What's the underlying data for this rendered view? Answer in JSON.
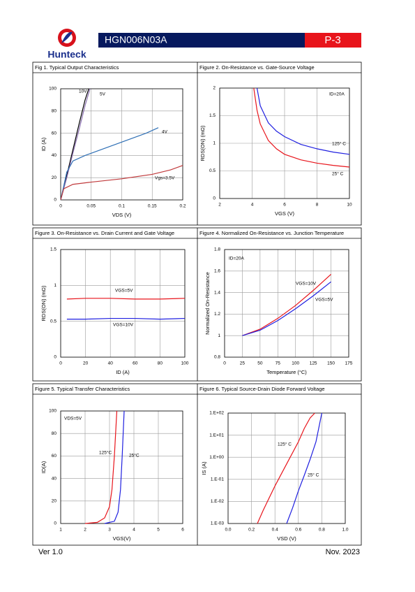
{
  "header": {
    "logo": "Hunteck",
    "title": "HGN006N03A",
    "page": "P-3"
  },
  "footer": {
    "version": "Ver 1.0",
    "date": "Nov. 2023"
  },
  "chart_data": [
    {
      "type": "line",
      "title": "Fig 1. Typical Output Characteristics",
      "xlabel": "VDS (V)",
      "ylabel": "ID (A)",
      "xlim": [
        0,
        0.2
      ],
      "xticks": [
        0,
        0.05,
        0.1,
        0.15,
        0.2
      ],
      "ylim": [
        0,
        100
      ],
      "yticks": [
        0,
        20,
        40,
        60,
        80,
        100
      ],
      "grid": true,
      "series": [
        {
          "name": "10V",
          "color": "#000000",
          "x": [
            0,
            0.01,
            0.02,
            0.03,
            0.04,
            0.046
          ],
          "values": [
            0,
            22,
            45,
            68,
            90,
            100
          ]
        },
        {
          "name": "5V",
          "color": "#8a6fb0",
          "x": [
            0,
            0.01,
            0.02,
            0.03,
            0.04,
            0.048
          ],
          "values": [
            0,
            20,
            42,
            63,
            85,
            100
          ]
        },
        {
          "name": "4V",
          "color": "#2e6fb5",
          "x": [
            0,
            0.01,
            0.02,
            0.04,
            0.06,
            0.08,
            0.1,
            0.12,
            0.14,
            0.16
          ],
          "values": [
            0,
            25,
            35,
            40,
            44,
            48,
            52,
            56,
            60,
            65
          ]
        },
        {
          "name": "Vgs=3.5V",
          "color": "#c0393b",
          "x": [
            0,
            0.005,
            0.02,
            0.05,
            0.1,
            0.15,
            0.18,
            0.2
          ],
          "values": [
            0,
            10,
            14,
            16,
            19,
            23,
            27,
            31
          ]
        }
      ]
    },
    {
      "type": "line",
      "title": "Figure 2. On-Resistance vs. Gate-Source Voltage",
      "xlabel": "VGS (V)",
      "ylabel": "RDS(ON) (mΩ)",
      "annotation": "ID=20A",
      "xlim": [
        2,
        10
      ],
      "xticks": [
        2,
        4,
        6,
        8,
        10
      ],
      "ylim": [
        0,
        2
      ],
      "yticks": [
        0,
        0.5,
        1,
        1.5,
        2
      ],
      "grid": true,
      "series": [
        {
          "name": "125° C",
          "color": "#1f1fe0",
          "x": [
            4.3,
            4.5,
            5,
            5.5,
            6,
            7,
            8,
            9,
            10
          ],
          "values": [
            2,
            1.68,
            1.37,
            1.22,
            1.12,
            0.98,
            0.9,
            0.84,
            0.8
          ]
        },
        {
          "name": "25° C",
          "color": "#e8141b",
          "x": [
            4.1,
            4.3,
            4.5,
            5,
            5.5,
            6,
            7,
            8,
            9,
            10
          ],
          "values": [
            2,
            1.6,
            1.35,
            1.05,
            0.9,
            0.8,
            0.7,
            0.64,
            0.6,
            0.57
          ]
        }
      ]
    },
    {
      "type": "line",
      "title": "Figure 3. On-Resistance vs. Drain Current and Gate Voltage",
      "xlabel": "ID (A)",
      "ylabel": "RDS(ON) (mΩ)",
      "xlim": [
        0,
        100
      ],
      "xticks": [
        0,
        20,
        40,
        60,
        80,
        100
      ],
      "ylim": [
        0,
        1.5
      ],
      "yticks": [
        0,
        0.5,
        1,
        1.5
      ],
      "grid": true,
      "series": [
        {
          "name": "VGS=5V",
          "color": "#e8141b",
          "x": [
            5,
            20,
            40,
            60,
            80,
            100
          ],
          "values": [
            0.81,
            0.82,
            0.82,
            0.81,
            0.81,
            0.82
          ]
        },
        {
          "name": "VGS=10V",
          "color": "#1f1fe0",
          "x": [
            5,
            20,
            40,
            60,
            80,
            100
          ],
          "values": [
            0.53,
            0.53,
            0.54,
            0.54,
            0.53,
            0.54
          ]
        }
      ]
    },
    {
      "type": "line",
      "title": "Figure 4. Normalized On-Resistance vs. Junction Temperature",
      "xlabel": "Temperature (°C)",
      "ylabel": "Normalized On-Resistance",
      "annotation": "ID=20A",
      "xlim": [
        0,
        175
      ],
      "xticks": [
        0,
        25,
        50,
        75,
        100,
        125,
        150,
        175
      ],
      "ylim": [
        0.8,
        1.8
      ],
      "yticks": [
        0.8,
        1,
        1.2,
        1.4,
        1.6,
        1.8
      ],
      "grid": true,
      "series": [
        {
          "name": "VGS=10V",
          "color": "#e8141b",
          "x": [
            25,
            50,
            75,
            100,
            125,
            150
          ],
          "values": [
            1,
            1.06,
            1.16,
            1.28,
            1.42,
            1.57
          ]
        },
        {
          "name": "VGS=5V",
          "color": "#1f1fe0",
          "x": [
            25,
            50,
            75,
            100,
            125,
            150
          ],
          "values": [
            1,
            1.05,
            1.14,
            1.25,
            1.37,
            1.5
          ]
        }
      ]
    },
    {
      "type": "line",
      "title": "Figure 5. Typical Transfer Characteristics",
      "xlabel": "VGS(V)",
      "ylabel": "ID(A)",
      "annotation": "VDS=5V",
      "xlim": [
        1,
        6
      ],
      "xticks": [
        1,
        2,
        3,
        4,
        5,
        6
      ],
      "ylim": [
        0,
        100
      ],
      "yticks": [
        0,
        20,
        40,
        60,
        80,
        100
      ],
      "grid": true,
      "series": [
        {
          "name": "125°C",
          "color": "#e8141b",
          "x": [
            2,
            2.5,
            2.8,
            3,
            3.1,
            3.2,
            3.3
          ],
          "values": [
            0,
            1,
            5,
            15,
            30,
            60,
            100
          ]
        },
        {
          "name": "25°C",
          "color": "#1f1fe0",
          "x": [
            2.8,
            3.2,
            3.35,
            3.45,
            3.52,
            3.6
          ],
          "values": [
            0,
            2,
            10,
            30,
            60,
            100
          ]
        }
      ]
    },
    {
      "type": "line",
      "title": "Figure 6. Typical Source-Drain Diode Forward Voltage",
      "xlabel": "VSD (V)",
      "ylabel": "IS (A)",
      "ylog": true,
      "xlim": [
        0,
        1
      ],
      "xticks": [
        {
          "value": 0,
          "label": "0.0"
        },
        0.2,
        0.4,
        0.6,
        0.8,
        {
          "value": 1,
          "label": "1.0"
        }
      ],
      "ylim": [
        0.001,
        100
      ],
      "yticks": [
        {
          "value": 0.001,
          "label": "1.E-03"
        },
        {
          "value": 0.01,
          "label": "1.E-02"
        },
        {
          "value": 0.1,
          "label": "1.E-01"
        },
        {
          "value": 1,
          "label": "1.E+00"
        },
        {
          "value": 10,
          "label": "1.E+01"
        },
        {
          "value": 100,
          "label": "1.E+02"
        }
      ],
      "grid": true,
      "series": [
        {
          "name": "125° C",
          "color": "#e8141b",
          "x": [
            0.25,
            0.3,
            0.4,
            0.5,
            0.6,
            0.65,
            0.7,
            0.74
          ],
          "values": [
            0.001,
            0.004,
            0.05,
            0.5,
            5,
            20,
            60,
            100
          ]
        },
        {
          "name": "25° C",
          "color": "#1f1fe0",
          "x": [
            0.5,
            0.55,
            0.6,
            0.65,
            0.7,
            0.75,
            0.8
          ],
          "values": [
            0.001,
            0.005,
            0.03,
            0.15,
            0.8,
            5,
            100
          ]
        }
      ]
    }
  ]
}
